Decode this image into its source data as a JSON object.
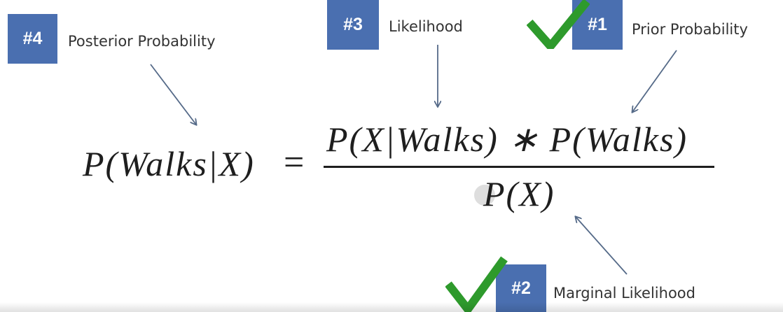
{
  "steps": [
    {
      "badge": "#4",
      "label": "Posterior Probability"
    },
    {
      "badge": "#3",
      "label": "Likelihood"
    },
    {
      "badge": "#1",
      "label": "Prior Probability"
    },
    {
      "badge": "#2",
      "label": "Marginal Likelihood"
    }
  ],
  "formula": {
    "lhs": "P(Walks|X)",
    "equals": "=",
    "numerator": "P(X|Walks) ∗ P(Walks)",
    "denominator": "P(X)"
  },
  "colors": {
    "badge": "#4a6fb0",
    "arrow": "#556a88",
    "checkmark": "#2e9a2c"
  },
  "icons": [
    "checkmark-icon",
    "arrow-icon"
  ]
}
